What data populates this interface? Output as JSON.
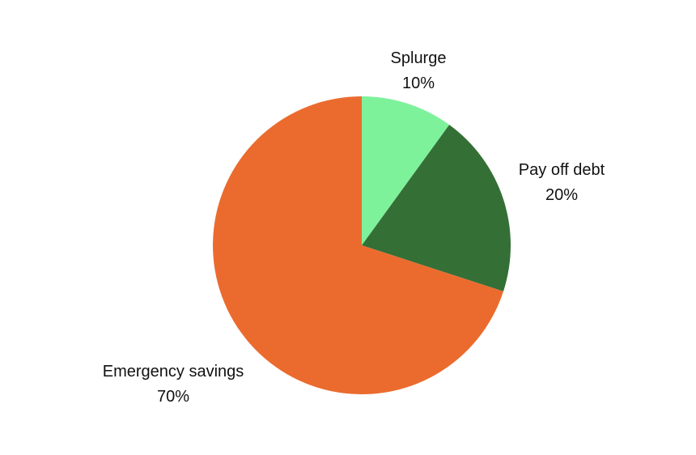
{
  "chart_data": {
    "type": "pie",
    "slices": [
      {
        "label": "Splurge",
        "value": 10,
        "percent_label": "10%",
        "color": "#7ef29a"
      },
      {
        "label": "Pay off debt",
        "value": 20,
        "percent_label": "20%",
        "color": "#346f36"
      },
      {
        "label": "Emergency savings",
        "value": 70,
        "percent_label": "70%",
        "color": "#eb6b2e"
      }
    ],
    "start": "12 o'clock",
    "direction": "clockwise",
    "legend": "none"
  }
}
